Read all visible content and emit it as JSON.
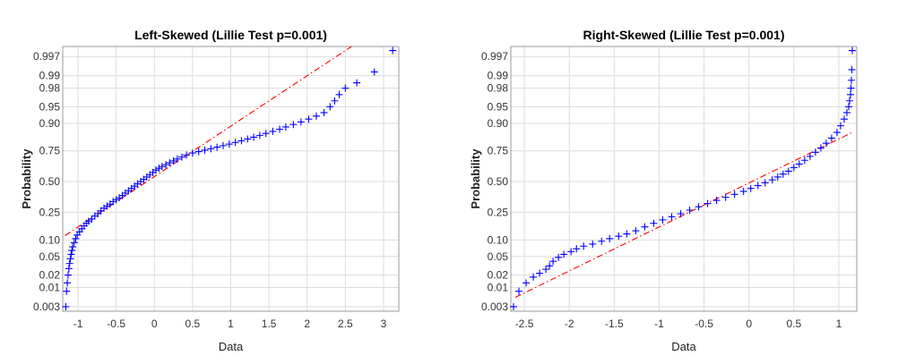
{
  "colors": {
    "marker": "#0000ff",
    "reference": "#ff0000"
  },
  "chart_data": [
    {
      "type": "scatter",
      "title": "Left-Skewed (Lillie Test p=0.001)",
      "xlabel": "Data",
      "ylabel": "Probability",
      "xlim": [
        -1.2,
        3.2
      ],
      "x_ticks": [
        -1,
        -0.5,
        0,
        0.5,
        1,
        1.5,
        2,
        2.5,
        3
      ],
      "x_tick_labels": [
        "-1",
        "-0.5",
        "0",
        "0.5",
        "1",
        "1.5",
        "2",
        "2.5",
        "3"
      ],
      "y_ticks": [
        0.003,
        0.01,
        0.02,
        0.05,
        0.1,
        0.25,
        0.5,
        0.75,
        0.9,
        0.95,
        0.98,
        0.99,
        0.997
      ],
      "y_tick_labels": [
        "0.003",
        "0.01",
        "0.02",
        "0.05",
        "0.10",
        "0.25",
        "0.50",
        "0.75",
        "0.90",
        "0.95",
        "0.98",
        "0.99",
        "0.997"
      ],
      "y_scale": "normal-probability",
      "grid": true,
      "marker": "+",
      "reference_line": {
        "x": [
          -1.17,
          2.58
        ],
        "p": [
          0.118,
          0.9985
        ]
      },
      "points": [
        [
          -1.16,
          0.003
        ],
        [
          -1.15,
          0.008
        ],
        [
          -1.14,
          0.013
        ],
        [
          -1.13,
          0.02
        ],
        [
          -1.12,
          0.028
        ],
        [
          -1.11,
          0.036
        ],
        [
          -1.1,
          0.045
        ],
        [
          -1.09,
          0.055
        ],
        [
          -1.08,
          0.065
        ],
        [
          -1.07,
          0.076
        ],
        [
          -1.05,
          0.09
        ],
        [
          -1.03,
          0.105
        ],
        [
          -1.01,
          0.12
        ],
        [
          -0.98,
          0.135
        ],
        [
          -0.95,
          0.15
        ],
        [
          -0.92,
          0.165
        ],
        [
          -0.89,
          0.18
        ],
        [
          -0.86,
          0.192
        ],
        [
          -0.82,
          0.205
        ],
        [
          -0.78,
          0.225
        ],
        [
          -0.74,
          0.24
        ],
        [
          -0.7,
          0.26
        ],
        [
          -0.66,
          0.28
        ],
        [
          -0.62,
          0.295
        ],
        [
          -0.58,
          0.31
        ],
        [
          -0.54,
          0.33
        ],
        [
          -0.5,
          0.345
        ],
        [
          -0.46,
          0.36
        ],
        [
          -0.42,
          0.38
        ],
        [
          -0.38,
          0.4
        ],
        [
          -0.34,
          0.42
        ],
        [
          -0.3,
          0.44
        ],
        [
          -0.26,
          0.46
        ],
        [
          -0.22,
          0.48
        ],
        [
          -0.18,
          0.5
        ],
        [
          -0.14,
          0.52
        ],
        [
          -0.1,
          0.54
        ],
        [
          -0.06,
          0.56
        ],
        [
          -0.02,
          0.58
        ],
        [
          0.02,
          0.6
        ],
        [
          0.06,
          0.615
        ],
        [
          0.1,
          0.63
        ],
        [
          0.15,
          0.645
        ],
        [
          0.2,
          0.66
        ],
        [
          0.25,
          0.675
        ],
        [
          0.3,
          0.69
        ],
        [
          0.36,
          0.705
        ],
        [
          0.42,
          0.72
        ],
        [
          0.5,
          0.735
        ],
        [
          0.58,
          0.745
        ],
        [
          0.66,
          0.755
        ],
        [
          0.74,
          0.765
        ],
        [
          0.82,
          0.775
        ],
        [
          0.9,
          0.785
        ],
        [
          0.98,
          0.795
        ],
        [
          1.06,
          0.805
        ],
        [
          1.14,
          0.815
        ],
        [
          1.22,
          0.825
        ],
        [
          1.3,
          0.835
        ],
        [
          1.38,
          0.845
        ],
        [
          1.46,
          0.855
        ],
        [
          1.55,
          0.865
        ],
        [
          1.64,
          0.875
        ],
        [
          1.72,
          0.885
        ],
        [
          1.82,
          0.895
        ],
        [
          1.92,
          0.905
        ],
        [
          2.02,
          0.915
        ],
        [
          2.12,
          0.925
        ],
        [
          2.22,
          0.935
        ],
        [
          2.3,
          0.95
        ],
        [
          2.36,
          0.962
        ],
        [
          2.42,
          0.972
        ],
        [
          2.5,
          0.98
        ],
        [
          2.65,
          0.985
        ],
        [
          2.88,
          0.992
        ],
        [
          3.12,
          0.998
        ]
      ]
    },
    {
      "type": "scatter",
      "title": "Right-Skewed (Lillie Test p=0.001)",
      "xlabel": "Data",
      "ylabel": "Probability",
      "xlim": [
        -2.65,
        1.2
      ],
      "x_ticks": [
        -2.5,
        -2,
        -1.5,
        -1,
        -0.5,
        0,
        0.5,
        1
      ],
      "x_tick_labels": [
        "-2.5",
        "-2",
        "-1.5",
        "-1",
        "-0.5",
        "0",
        "0.5",
        "1"
      ],
      "y_ticks": [
        0.003,
        0.01,
        0.02,
        0.05,
        0.1,
        0.25,
        0.5,
        0.75,
        0.9,
        0.95,
        0.98,
        0.99,
        0.997
      ],
      "y_tick_labels": [
        "0.003",
        "0.01",
        "0.02",
        "0.05",
        "0.10",
        "0.25",
        "0.50",
        "0.75",
        "0.90",
        "0.95",
        "0.98",
        "0.99",
        "0.997"
      ],
      "y_scale": "normal-probability",
      "grid": true,
      "marker": "+",
      "reference_line": {
        "x": [
          -2.6,
          1.15
        ],
        "p": [
          0.0055,
          0.86
        ]
      },
      "points": [
        [
          -2.62,
          0.003
        ],
        [
          -2.56,
          0.008
        ],
        [
          -2.48,
          0.013
        ],
        [
          -2.4,
          0.018
        ],
        [
          -2.33,
          0.022
        ],
        [
          -2.26,
          0.027
        ],
        [
          -2.22,
          0.032
        ],
        [
          -2.18,
          0.04
        ],
        [
          -2.12,
          0.048
        ],
        [
          -2.06,
          0.055
        ],
        [
          -1.98,
          0.062
        ],
        [
          -1.92,
          0.07
        ],
        [
          -1.84,
          0.078
        ],
        [
          -1.74,
          0.085
        ],
        [
          -1.64,
          0.095
        ],
        [
          -1.55,
          0.105
        ],
        [
          -1.45,
          0.115
        ],
        [
          -1.36,
          0.125
        ],
        [
          -1.26,
          0.14
        ],
        [
          -1.16,
          0.16
        ],
        [
          -1.06,
          0.18
        ],
        [
          -0.96,
          0.2
        ],
        [
          -0.86,
          0.22
        ],
        [
          -0.76,
          0.24
        ],
        [
          -0.66,
          0.265
        ],
        [
          -0.56,
          0.29
        ],
        [
          -0.46,
          0.315
        ],
        [
          -0.36,
          0.34
        ],
        [
          -0.26,
          0.365
        ],
        [
          -0.16,
          0.39
        ],
        [
          -0.06,
          0.415
        ],
        [
          0.02,
          0.44
        ],
        [
          0.1,
          0.465
        ],
        [
          0.18,
          0.49
        ],
        [
          0.26,
          0.515
        ],
        [
          0.32,
          0.54
        ],
        [
          0.38,
          0.565
        ],
        [
          0.44,
          0.59
        ],
        [
          0.5,
          0.62
        ],
        [
          0.56,
          0.65
        ],
        [
          0.62,
          0.68
        ],
        [
          0.68,
          0.71
        ],
        [
          0.74,
          0.74
        ],
        [
          0.8,
          0.77
        ],
        [
          0.86,
          0.8
        ],
        [
          0.92,
          0.83
        ],
        [
          0.98,
          0.86
        ],
        [
          1.02,
          0.89
        ],
        [
          1.06,
          0.915
        ],
        [
          1.09,
          0.935
        ],
        [
          1.11,
          0.95
        ],
        [
          1.12,
          0.962
        ],
        [
          1.13,
          0.972
        ],
        [
          1.135,
          0.98
        ],
        [
          1.14,
          0.987
        ],
        [
          1.145,
          0.993
        ],
        [
          1.15,
          0.998
        ]
      ]
    }
  ]
}
